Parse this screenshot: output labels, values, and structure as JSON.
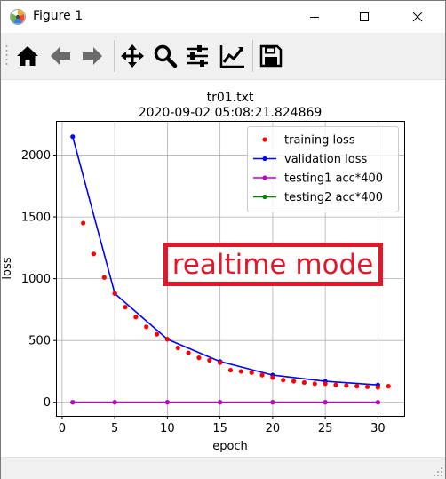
{
  "window": {
    "title": "Figure 1",
    "app_icon": "matplotlib-icon",
    "controls": [
      "minimize-icon",
      "maximize-icon",
      "close-icon"
    ]
  },
  "toolbar": {
    "buttons": [
      {
        "name": "home-button",
        "icon": "home-icon"
      },
      {
        "name": "back-button",
        "icon": "arrow-left-icon"
      },
      {
        "name": "forward-button",
        "icon": "arrow-right-icon"
      },
      {
        "name": "pan-button",
        "icon": "move-icon"
      },
      {
        "name": "zoom-button",
        "icon": "magnifier-icon"
      },
      {
        "name": "subplots-button",
        "icon": "sliders-icon"
      },
      {
        "name": "edit-axis-button",
        "icon": "line-chart-icon"
      },
      {
        "name": "save-button",
        "icon": "floppy-disk-icon"
      }
    ]
  },
  "annotation": {
    "text": "realtime mode",
    "color": "#e0192a"
  },
  "chart_data": {
    "type": "line",
    "title": "tr01.txt",
    "subtitle": "2020-09-02 05:08:21.824869",
    "xlabel": "epoch",
    "ylabel": "loss",
    "xlim": [
      -0.5,
      32.5
    ],
    "ylim": [
      -110,
      2270
    ],
    "xticks": [
      0,
      5,
      10,
      15,
      20,
      25,
      30
    ],
    "yticks": [
      0,
      500,
      1000,
      1500,
      2000
    ],
    "grid": true,
    "legend_position": "top-right",
    "series": [
      {
        "name": "training loss",
        "color": "#ff0000",
        "style": "points",
        "x": [
          2,
          3,
          4,
          5,
          6,
          7,
          8,
          9,
          10,
          11,
          12,
          13,
          14,
          15,
          16,
          17,
          18,
          19,
          20,
          21,
          22,
          23,
          24,
          25,
          26,
          27,
          28,
          29,
          30,
          31
        ],
        "y": [
          1450,
          1200,
          1010,
          880,
          770,
          690,
          610,
          550,
          510,
          440,
          400,
          360,
          340,
          320,
          260,
          250,
          240,
          220,
          200,
          180,
          170,
          160,
          150,
          150,
          140,
          135,
          130,
          125,
          120,
          130
        ]
      },
      {
        "name": "validation loss",
        "color": "#0000ff",
        "style": "line-marker",
        "x": [
          1,
          5,
          10,
          15,
          20,
          25,
          30
        ],
        "y": [
          2150,
          880,
          510,
          330,
          220,
          170,
          140
        ]
      },
      {
        "name": "testing1 acc*400",
        "color": "#bf00bf",
        "style": "line-marker",
        "x": [
          1,
          5,
          10,
          15,
          20,
          25,
          30
        ],
        "y": [
          0,
          0,
          0,
          0,
          0,
          0,
          0
        ]
      },
      {
        "name": "testing2 acc*400",
        "color": "#008000",
        "style": "line-marker",
        "x": [
          1,
          5,
          10,
          15,
          20,
          25,
          30
        ],
        "y": [
          0,
          0,
          0,
          0,
          0,
          0,
          0
        ]
      }
    ]
  }
}
